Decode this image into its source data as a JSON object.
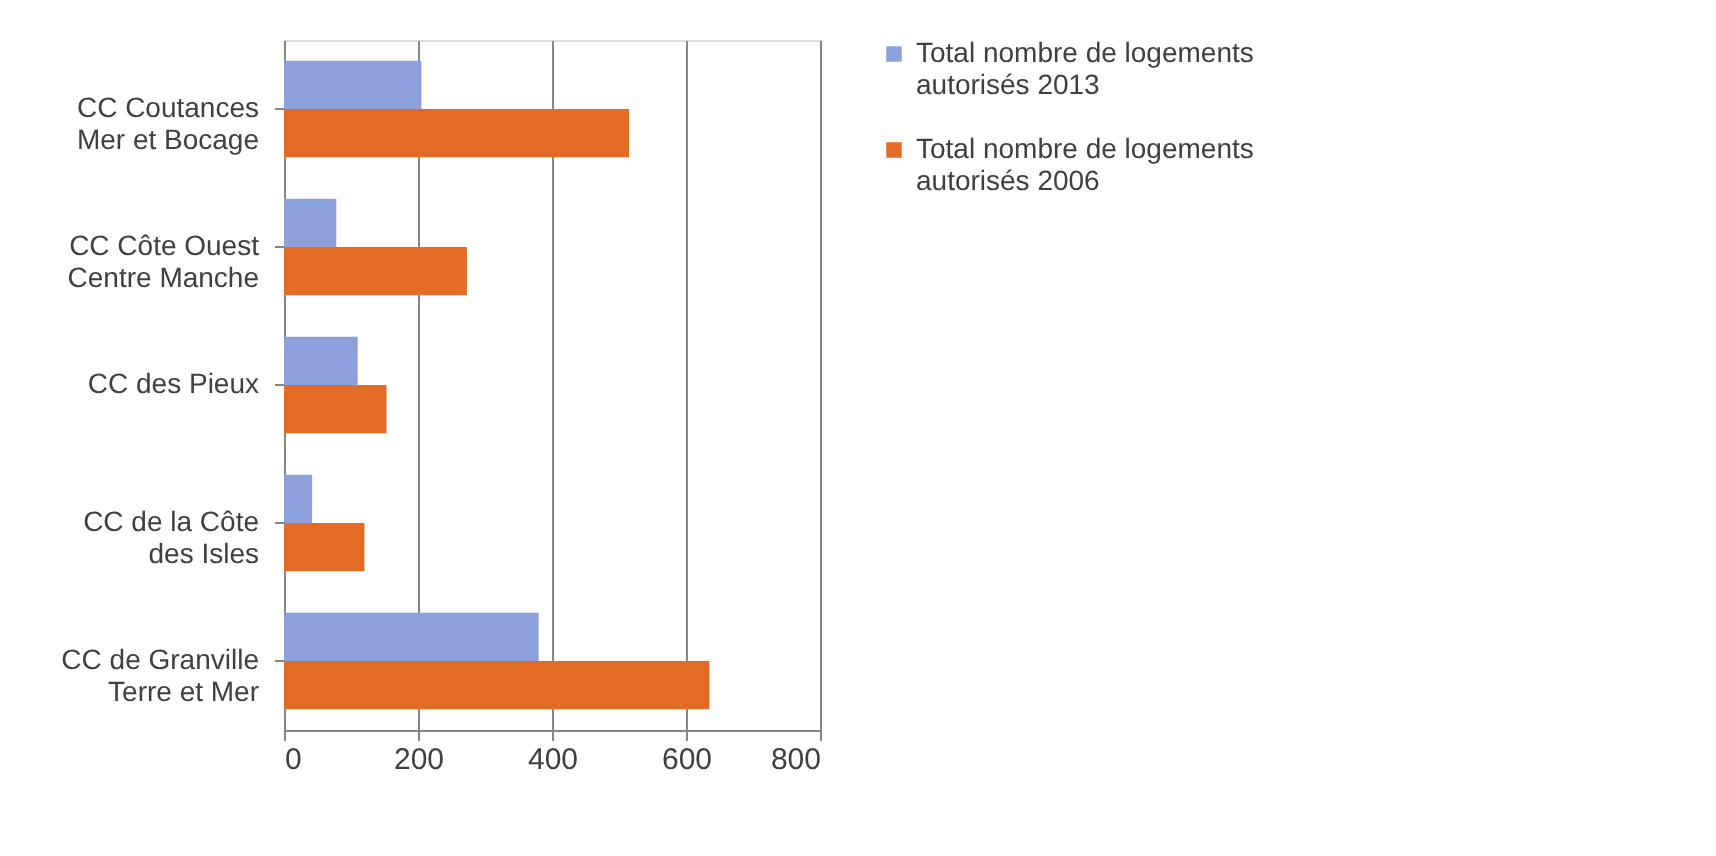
{
  "chart_data": {
    "type": "bar",
    "orientation": "horizontal",
    "categories": [
      "CC Coutances\nMer et Bocage",
      "CC Côte Ouest\nCentre Manche",
      "CC des Pieux",
      "CC de la Côte\ndes Isles",
      "CC de Granville\nTerre et Mer"
    ],
    "series": [
      {
        "name": "Total nombre de logements\nautorisés 2013",
        "color": "#8ea0db",
        "values": [
          205,
          78,
          110,
          42,
          380
        ]
      },
      {
        "name": "Total nombre de logements\nautorisés 2006",
        "color": "#e26b25",
        "values": [
          515,
          273,
          153,
          120,
          635
        ]
      }
    ],
    "xlim": [
      0,
      800
    ],
    "xticks": [
      0,
      200,
      400,
      600,
      800
    ],
    "grid": "x",
    "legend": "right"
  }
}
